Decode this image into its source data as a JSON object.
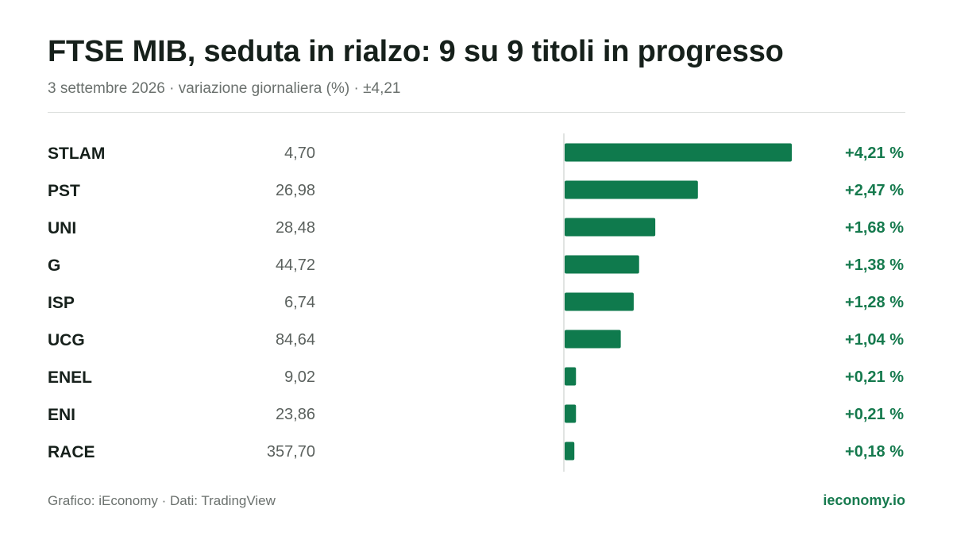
{
  "header": {
    "title": "FTSE MIB, seduta in rialzo: 9 su 9 titoli in progresso",
    "subtitle": "3 settembre 2026 · variazione giornaliera (%) · ±4,21"
  },
  "footer": {
    "credit": "Grafico: iEconomy · Dati: TradingView",
    "brand": "ieconomy.io"
  },
  "colors": {
    "bar": "#0f7a4d",
    "positive_text": "#167a4e",
    "axis": "#d7dbd9"
  },
  "chart_data": {
    "type": "bar",
    "orientation": "horizontal",
    "xlim": [
      0,
      4.21
    ],
    "rows": [
      {
        "ticker": "STLAM",
        "price": "4,70",
        "value": 4.21,
        "label": "+4,21 %"
      },
      {
        "ticker": "PST",
        "price": "26,98",
        "value": 2.47,
        "label": "+2,47 %"
      },
      {
        "ticker": "UNI",
        "price": "28,48",
        "value": 1.68,
        "label": "+1,68 %"
      },
      {
        "ticker": "G",
        "price": "44,72",
        "value": 1.38,
        "label": "+1,38 %"
      },
      {
        "ticker": "ISP",
        "price": "6,74",
        "value": 1.28,
        "label": "+1,28 %"
      },
      {
        "ticker": "UCG",
        "price": "84,64",
        "value": 1.04,
        "label": "+1,04 %"
      },
      {
        "ticker": "ENEL",
        "price": "9,02",
        "value": 0.21,
        "label": "+0,21 %"
      },
      {
        "ticker": "ENI",
        "price": "23,86",
        "value": 0.21,
        "label": "+0,21 %"
      },
      {
        "ticker": "RACE",
        "price": "357,70",
        "value": 0.18,
        "label": "+0,18 %"
      }
    ]
  }
}
